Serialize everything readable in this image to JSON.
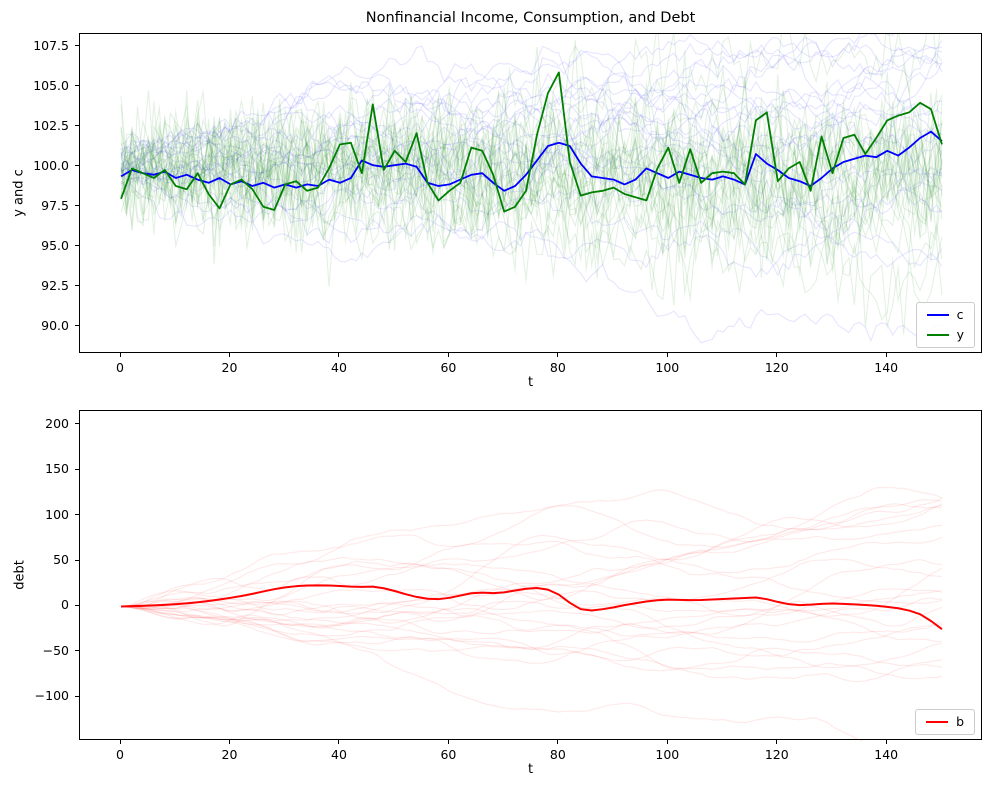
{
  "figure": {
    "title": "Nonfinancial Income, Consumption, and Debt",
    "background": "#ffffff",
    "frame_color": "#000000"
  },
  "chart_data": [
    {
      "id": "income-consumption",
      "type": "line",
      "title": "",
      "xlabel": "t",
      "ylabel": "y and c",
      "xlim": [
        -7.5,
        157.5
      ],
      "ylim": [
        88.3,
        108.3
      ],
      "grid": false,
      "x_tick_values": [
        0,
        20,
        40,
        60,
        80,
        100,
        120,
        140
      ],
      "x_tick_labels": [
        "0",
        "20",
        "40",
        "60",
        "80",
        "100",
        "120",
        "140"
      ],
      "y_tick_values": [
        90.0,
        92.5,
        95.0,
        97.5,
        100.0,
        102.5,
        105.0,
        107.5
      ],
      "y_tick_labels": [
        "90.0",
        "92.5",
        "95.0",
        "97.5",
        "100.0",
        "102.5",
        "105.0",
        "107.5"
      ],
      "legend_position": "lower right",
      "legend": [
        {
          "label": "c",
          "color": "#0000ff"
        },
        {
          "label": "y",
          "color": "#008000"
        }
      ],
      "series": [
        {
          "name": "c",
          "color": "#0000ff",
          "line_width": 1.8,
          "t_start": 0,
          "t_step": 2,
          "values": [
            99.4,
            99.8,
            99.6,
            99.5,
            99.7,
            99.3,
            99.5,
            99.2,
            99.0,
            99.3,
            98.9,
            99.1,
            98.8,
            99.0,
            98.7,
            98.9,
            98.7,
            98.9,
            98.8,
            99.2,
            99.0,
            99.3,
            100.4,
            100.1,
            100.0,
            100.1,
            100.2,
            100.0,
            99.0,
            98.8,
            98.9,
            99.2,
            99.5,
            99.6,
            99.0,
            98.5,
            98.8,
            99.5,
            100.4,
            101.3,
            101.5,
            101.3,
            100.2,
            99.4,
            99.3,
            99.2,
            98.9,
            99.2,
            99.9,
            99.6,
            99.3,
            99.7,
            99.5,
            99.3,
            99.2,
            99.4,
            99.2,
            98.9,
            100.8,
            100.2,
            99.8,
            99.3,
            99.1,
            98.8,
            99.3,
            99.9,
            100.3,
            100.5,
            100.7,
            100.6,
            101.0,
            100.7,
            101.2,
            101.8,
            102.2,
            101.6
          ]
        },
        {
          "name": "y",
          "color": "#008000",
          "line_width": 1.8,
          "t_start": 0,
          "t_step": 2,
          "values": [
            98.0,
            99.9,
            99.6,
            99.3,
            99.8,
            98.8,
            98.6,
            99.6,
            98.3,
            97.4,
            98.9,
            99.2,
            98.6,
            97.5,
            97.3,
            98.9,
            99.1,
            98.5,
            98.7,
            99.9,
            101.4,
            101.5,
            99.6,
            103.9,
            99.8,
            101.0,
            100.3,
            102.1,
            99.0,
            97.9,
            98.5,
            99.0,
            101.2,
            101.0,
            99.5,
            97.2,
            97.5,
            98.5,
            102.0,
            104.6,
            105.9,
            100.3,
            98.2,
            98.4,
            98.5,
            98.7,
            98.3,
            98.1,
            97.9,
            99.9,
            101.2,
            99.0,
            101.1,
            99.0,
            99.6,
            99.7,
            99.6,
            98.9,
            102.9,
            103.4,
            99.1,
            99.9,
            100.3,
            98.5,
            101.9,
            99.6,
            101.8,
            102.0,
            100.8,
            101.8,
            102.9,
            103.2,
            103.4,
            104.0,
            103.6,
            101.4
          ]
        }
      ],
      "ensembles": [
        {
          "name": "consumption-simulations",
          "model": "random_walk",
          "count": 24,
          "start": 100,
          "start_jitter": 0.6,
          "sigma": 0.4,
          "color": "0,0,255",
          "opacity": 0.1,
          "seed": 20,
          "t_max": 150
        },
        {
          "name": "income-simulations",
          "model": "signal_noise",
          "count": 24,
          "start": 100,
          "sigma_signal": 0.22,
          "sigma_noise": 1.6,
          "color": "0,128,0",
          "opacity": 0.11,
          "seed": 7,
          "t_max": 150
        }
      ]
    },
    {
      "id": "debt",
      "type": "line",
      "title": "",
      "xlabel": "t",
      "ylabel": "debt",
      "xlim": [
        -7.5,
        157.5
      ],
      "ylim": [
        -148,
        215
      ],
      "grid": false,
      "x_tick_values": [
        0,
        20,
        40,
        60,
        80,
        100,
        120,
        140
      ],
      "x_tick_labels": [
        "0",
        "20",
        "40",
        "60",
        "80",
        "100",
        "120",
        "140"
      ],
      "y_tick_values": [
        -100,
        -50,
        0,
        50,
        100,
        150,
        200
      ],
      "y_tick_labels": [
        "−100",
        "−50",
        "0",
        "50",
        "100",
        "150",
        "200"
      ],
      "legend_position": "lower right",
      "legend": [
        {
          "label": "b",
          "color": "#ff0000"
        }
      ],
      "series": [
        {
          "name": "b",
          "color": "#ff0000",
          "line_width": 2.0,
          "t_start": 0,
          "t_step": 2,
          "values": [
            0,
            0.3,
            0.7,
            1.2,
            1.8,
            2.5,
            3.4,
            4.6,
            6.0,
            7.6,
            9.5,
            11.5,
            13.8,
            16.5,
            19.0,
            21.0,
            22.3,
            23.0,
            23.2,
            23.0,
            22.5,
            21.8,
            21.5,
            21.8,
            20.0,
            17.0,
            13.5,
            10.5,
            8.5,
            8.0,
            9.5,
            12.0,
            14.5,
            15.2,
            14.6,
            15.5,
            17.5,
            19.5,
            20.3,
            18.5,
            13.0,
            4.0,
            -3.0,
            -4.5,
            -3.0,
            -1.0,
            1.5,
            3.5,
            5.5,
            6.8,
            7.5,
            7.2,
            6.9,
            7.1,
            7.6,
            8.2,
            8.8,
            9.3,
            9.8,
            8.0,
            5.0,
            2.5,
            1.5,
            2.0,
            2.8,
            3.2,
            2.9,
            2.3,
            1.6,
            0.8,
            -0.5,
            -2.0,
            -4.5,
            -8.5,
            -16.0,
            -25.0
          ]
        }
      ],
      "ensembles": [
        {
          "name": "debt-simulations",
          "model": "integrated_ar",
          "count": 24,
          "rho": 0.85,
          "sigma": 0.8,
          "color": "255,0,0",
          "opacity": 0.09,
          "seed": 13,
          "t_max": 150
        }
      ]
    }
  ]
}
